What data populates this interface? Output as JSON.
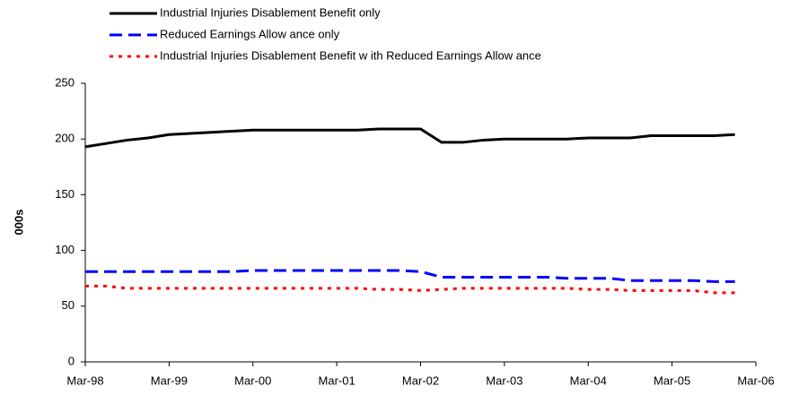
{
  "chart_data": {
    "type": "line",
    "y_label": "000s",
    "categories": [
      "Mar-98",
      null,
      null,
      null,
      "Mar-99",
      null,
      null,
      null,
      "Mar-00",
      null,
      null,
      null,
      "Mar-01",
      null,
      null,
      null,
      "Mar-02",
      null,
      null,
      null,
      "Mar-03",
      null,
      null,
      null,
      "Mar-04",
      null,
      null,
      null,
      "Mar-05",
      null,
      null,
      null,
      "Mar-06"
    ],
    "series": [
      {
        "name": "Industrial Injuries Disablement Benefit only",
        "color": "#000000",
        "dash": "solid",
        "values": [
          193,
          196,
          199,
          201,
          204,
          205,
          206,
          207,
          208,
          208,
          208,
          208,
          208,
          208,
          209,
          209,
          209,
          197,
          197,
          199,
          200,
          200,
          200,
          200,
          201,
          201,
          201,
          203,
          203,
          203,
          203,
          204,
          null
        ]
      },
      {
        "name": "Reduced Earnings Allow ance only",
        "color": "#0000ff",
        "dash": "dashed",
        "values": [
          81,
          81,
          81,
          81,
          81,
          81,
          81,
          81,
          82,
          82,
          82,
          82,
          82,
          82,
          82,
          82,
          81,
          76,
          76,
          76,
          76,
          76,
          76,
          75,
          75,
          75,
          73,
          73,
          73,
          73,
          72,
          72,
          null
        ]
      },
      {
        "name": "Industrial Injuries Disablement Benefit w ith Reduced Earnings Allow ance",
        "color": "#ff0000",
        "dash": "dotted",
        "values": [
          68,
          68,
          66,
          66,
          66,
          66,
          66,
          66,
          66,
          66,
          66,
          66,
          66,
          66,
          65,
          65,
          64,
          65,
          66,
          66,
          66,
          66,
          66,
          66,
          65,
          65,
          64,
          64,
          64,
          64,
          62,
          62,
          null
        ]
      }
    ],
    "ylim": [
      0,
      250
    ],
    "yticks": [
      0,
      50,
      100,
      150,
      200,
      250
    ],
    "grid": false
  }
}
